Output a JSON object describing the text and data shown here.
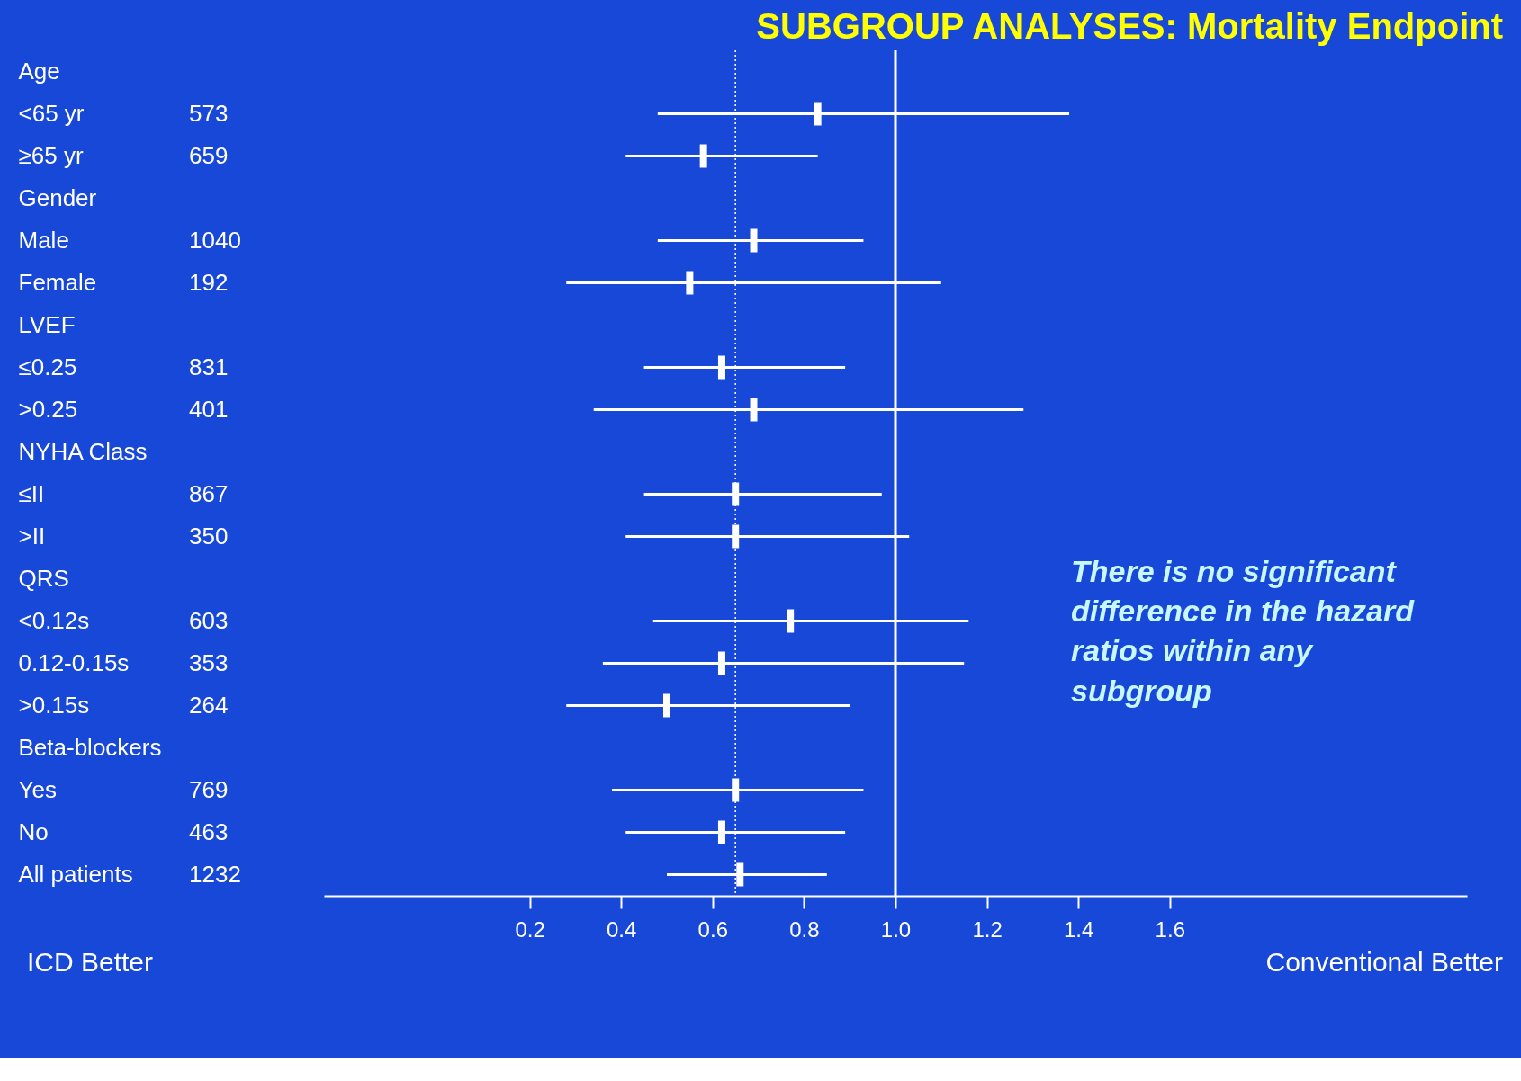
{
  "chart_data": {
    "type": "scatter",
    "orientation": "horizontal",
    "title": "SUBGROUP ANALYSES: Mortality Endpoint",
    "categories": [
      "Age",
      "<65 yr",
      "≥65 yr",
      "Gender",
      "Male",
      "Female",
      "LVEF",
      "≤0.25",
      ">0.25",
      "NYHA Class",
      "≤II",
      ">II",
      "QRS",
      "<0.12s",
      "0.12-0.15s",
      ">0.15s",
      "Beta-blockers",
      "Yes",
      "No",
      "All patients"
    ],
    "values": [
      null,
      0.83,
      0.58,
      null,
      0.69,
      0.55,
      null,
      0.62,
      0.69,
      null,
      0.65,
      0.65,
      null,
      0.77,
      0.62,
      0.5,
      null,
      0.65,
      0.62,
      0.66
    ],
    "errors": [
      null,
      [
        0.48,
        1.38
      ],
      [
        0.41,
        0.83
      ],
      null,
      [
        0.48,
        0.93
      ],
      [
        0.28,
        1.1
      ],
      null,
      [
        0.45,
        0.89
      ],
      [
        0.34,
        1.28
      ],
      null,
      [
        0.45,
        0.97
      ],
      [
        0.41,
        1.03
      ],
      null,
      [
        0.47,
        1.16
      ],
      [
        0.36,
        1.15
      ],
      [
        0.28,
        0.9
      ],
      null,
      [
        0.38,
        0.93
      ],
      [
        0.41,
        0.89
      ],
      [
        0.5,
        0.85
      ]
    ],
    "color": "#ffffff",
    "grid": false,
    "xlim": [
      -0.25,
      2.25
    ],
    "xticks": [
      0.2,
      0.4,
      0.6,
      0.8,
      {
        "value": 1.0,
        "label": "1.0"
      },
      1.2,
      1.4,
      1.6
    ],
    "ref_lines": [
      {
        "axis": "x",
        "value": 1.0,
        "line_style": "solid"
      },
      {
        "axis": "x",
        "value": 0.65,
        "line_style": "dotted"
      }
    ],
    "annotations": [
      "573",
      "659",
      "1040",
      "192",
      "831",
      "401",
      "867",
      "350",
      "603",
      "353",
      "264",
      "769",
      "463",
      "1232",
      "ICD Better",
      "Conventional Better",
      "There is no significant difference in the hazard ratios within any subgroup"
    ]
  }
}
